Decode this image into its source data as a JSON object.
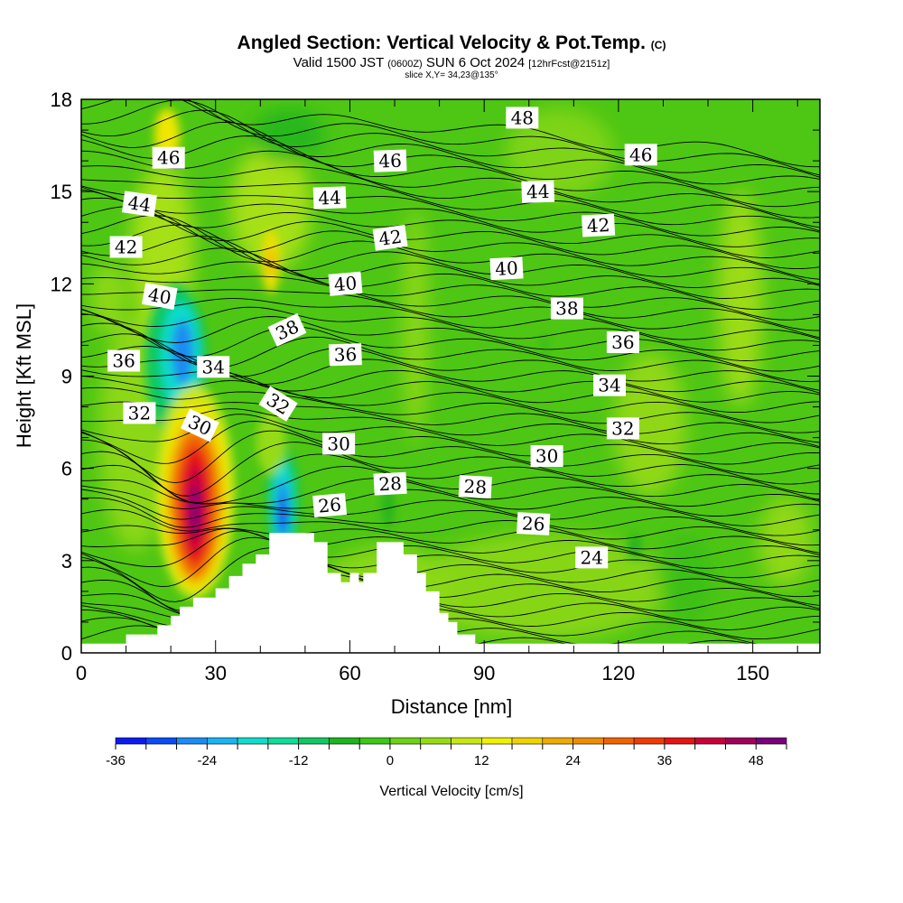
{
  "header": {
    "title": "Angled Section: Vertical Velocity & Pot.Temp.",
    "copyright": "(C)",
    "valid_prefix": "Valid 1500 JST",
    "valid_zulu": "(0600Z)",
    "valid_date": "SUN 6 Oct 2024",
    "forecast": "[12hrFcst@2151z]",
    "slice": "slice X,Y= 34,23@135°"
  },
  "chart_data": {
    "type": "contour",
    "xlabel": "Distance [nm]",
    "ylabel": "Height [Kft MSL]",
    "xlim": [
      0,
      165
    ],
    "ylim": [
      0,
      18
    ],
    "x_ticks": [
      0,
      30,
      60,
      90,
      120,
      150
    ],
    "y_ticks": [
      0,
      3,
      6,
      9,
      12,
      15,
      18
    ],
    "colorbar": {
      "label": "Vertical Velocity [cm/s]",
      "tick_values": [
        -36,
        -24,
        -12,
        0,
        12,
        24,
        36,
        48
      ],
      "bins": [
        -36,
        -32,
        -28,
        -24,
        -20,
        -16,
        -12,
        -8,
        -4,
        0,
        4,
        8,
        12,
        16,
        20,
        24,
        28,
        32,
        36,
        40,
        44,
        48,
        52
      ],
      "colors": [
        "#0a1cf0",
        "#0a4cf5",
        "#1a8cf2",
        "#1ab4f0",
        "#10dccc",
        "#10dc9a",
        "#10c864",
        "#1eb41e",
        "#3cc814",
        "#6ed214",
        "#96dc14",
        "#c8e614",
        "#f0f000",
        "#f0d200",
        "#f0aa00",
        "#f08c00",
        "#f06400",
        "#f03c00",
        "#e61414",
        "#c8003c",
        "#a0005a",
        "#78007a",
        "#500090"
      ]
    },
    "terrain": [
      [
        0,
        0.3
      ],
      [
        10,
        0.3
      ],
      [
        10,
        0.6
      ],
      [
        17,
        0.6
      ],
      [
        17,
        0.9
      ],
      [
        20,
        0.9
      ],
      [
        20,
        1.2
      ],
      [
        22,
        1.2
      ],
      [
        22,
        1.5
      ],
      [
        25,
        1.5
      ],
      [
        25,
        1.8
      ],
      [
        30,
        1.8
      ],
      [
        30,
        2.1
      ],
      [
        33,
        2.1
      ],
      [
        33,
        2.5
      ],
      [
        36,
        2.5
      ],
      [
        36,
        2.9
      ],
      [
        39,
        2.9
      ],
      [
        39,
        3.2
      ],
      [
        42,
        3.2
      ],
      [
        42,
        3.9
      ],
      [
        52,
        3.9
      ],
      [
        52,
        3.6
      ],
      [
        55,
        3.6
      ],
      [
        55,
        2.6
      ],
      [
        58,
        2.6
      ],
      [
        58,
        2.3
      ],
      [
        60,
        2.3
      ],
      [
        60,
        2.6
      ],
      [
        62,
        2.6
      ],
      [
        62,
        2.3
      ],
      [
        63,
        2.3
      ],
      [
        63,
        2.6
      ],
      [
        66,
        2.6
      ],
      [
        66,
        3.6
      ],
      [
        72,
        3.6
      ],
      [
        72,
        3.2
      ],
      [
        75,
        3.2
      ],
      [
        75,
        2.6
      ],
      [
        77,
        2.6
      ],
      [
        77,
        2.0
      ],
      [
        80,
        2.0
      ],
      [
        80,
        1.3
      ],
      [
        82,
        1.3
      ],
      [
        82,
        1.0
      ],
      [
        84,
        1.0
      ],
      [
        84,
        0.6
      ],
      [
        88,
        0.6
      ],
      [
        88,
        0.3
      ],
      [
        165,
        0.3
      ]
    ],
    "contour_labels": [
      {
        "text": "46",
        "x": 19.5,
        "y": 16.1,
        "angle": 0
      },
      {
        "text": "46",
        "x": 69,
        "y": 16.0,
        "angle": -2
      },
      {
        "text": "48",
        "x": 98.5,
        "y": 17.4,
        "angle": 0
      },
      {
        "text": "46",
        "x": 125,
        "y": 16.2,
        "angle": 0
      },
      {
        "text": "44",
        "x": 13,
        "y": 14.6,
        "angle": 8
      },
      {
        "text": "44",
        "x": 55.5,
        "y": 14.8,
        "angle": -2
      },
      {
        "text": "44",
        "x": 102,
        "y": 15.0,
        "angle": -2
      },
      {
        "text": "42",
        "x": 10,
        "y": 13.2,
        "angle": 0
      },
      {
        "text": "42",
        "x": 69,
        "y": 13.5,
        "angle": -8
      },
      {
        "text": "42",
        "x": 115.5,
        "y": 13.9,
        "angle": -3
      },
      {
        "text": "40",
        "x": 17.5,
        "y": 11.6,
        "angle": 10
      },
      {
        "text": "40",
        "x": 59,
        "y": 12.0,
        "angle": -5
      },
      {
        "text": "40",
        "x": 95,
        "y": 12.5,
        "angle": -3
      },
      {
        "text": "38",
        "x": 46,
        "y": 10.5,
        "angle": -25
      },
      {
        "text": "38",
        "x": 108.5,
        "y": 11.2,
        "angle": 0
      },
      {
        "text": "36",
        "x": 9.5,
        "y": 9.5,
        "angle": 0
      },
      {
        "text": "36",
        "x": 59,
        "y": 9.7,
        "angle": -2
      },
      {
        "text": "36",
        "x": 121,
        "y": 10.1,
        "angle": 0
      },
      {
        "text": "34",
        "x": 29.5,
        "y": 9.3,
        "angle": 0
      },
      {
        "text": "34",
        "x": 118,
        "y": 8.7,
        "angle": 0
      },
      {
        "text": "32",
        "x": 13,
        "y": 7.8,
        "angle": 0
      },
      {
        "text": "32",
        "x": 44,
        "y": 8.1,
        "angle": 32
      },
      {
        "text": "32",
        "x": 121,
        "y": 7.3,
        "angle": 0
      },
      {
        "text": "30",
        "x": 26.5,
        "y": 7.4,
        "angle": 25
      },
      {
        "text": "30",
        "x": 57.5,
        "y": 6.8,
        "angle": 0
      },
      {
        "text": "30",
        "x": 104,
        "y": 6.4,
        "angle": 0
      },
      {
        "text": "28",
        "x": 69,
        "y": 5.5,
        "angle": -3
      },
      {
        "text": "28",
        "x": 88,
        "y": 5.4,
        "angle": 3
      },
      {
        "text": "26",
        "x": 55.5,
        "y": 4.8,
        "angle": -5
      },
      {
        "text": "26",
        "x": 101,
        "y": 4.2,
        "angle": 3
      },
      {
        "text": "24",
        "x": 114,
        "y": 3.1,
        "angle": 0
      }
    ]
  }
}
